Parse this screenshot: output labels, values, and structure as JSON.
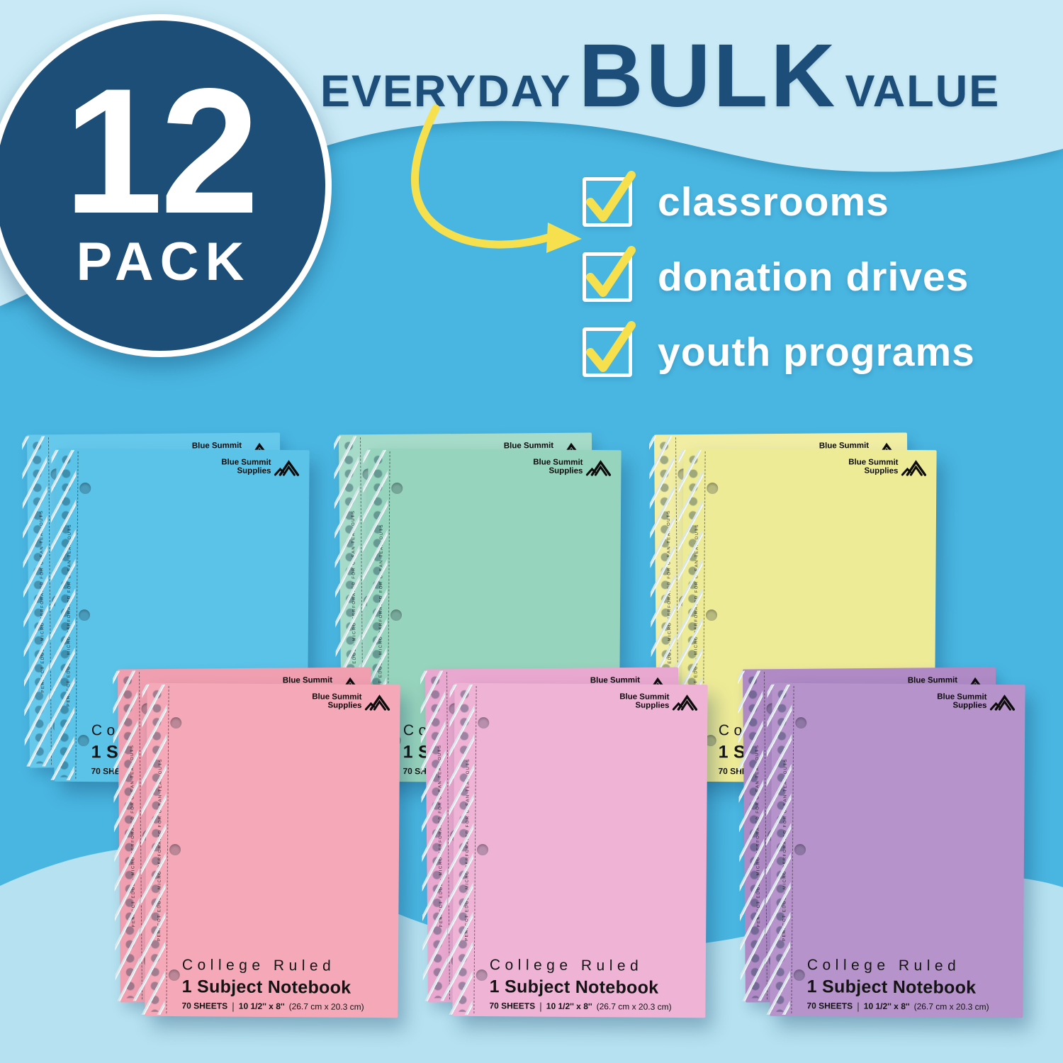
{
  "badge": {
    "count": "12",
    "label": "PACK"
  },
  "headline": {
    "word1": "EVERYDAY",
    "word2": "BULK",
    "word3": "VALUE"
  },
  "checklist": {
    "items": [
      "classrooms",
      "donation drives",
      "youth programs"
    ]
  },
  "notebook": {
    "brand": {
      "line1": "Blue Summit",
      "line2": "Supplies"
    },
    "edge_text": "PERFECT EDGE - MICRO PERFORATED FOR CLEAN TEAR-OUTS",
    "ruling": "College Ruled",
    "subject": "1 Subject Notebook",
    "sheets": "70 SHEETS",
    "sheets_divider": "|",
    "dimensions_in": "10 1/2'' x 8''",
    "dimensions_cm": "(26.7 cm x 20.3 cm)",
    "pairs": [
      {
        "color_name": "blue",
        "front": "#5bc3e8",
        "back": "#66c9ec"
      },
      {
        "color_name": "mint-green",
        "front": "#97d4bd",
        "back": "#a5dbc8"
      },
      {
        "color_name": "pastel-yellow",
        "front": "#eeeb97",
        "back": "#f1eea4"
      },
      {
        "color_name": "pink",
        "front": "#f5a9b8",
        "back": "#f09fb0"
      },
      {
        "color_name": "orchid-pink",
        "front": "#efb3d6",
        "back": "#e9a8cf"
      },
      {
        "color_name": "purple",
        "front": "#b793cb",
        "back": "#af8ac5"
      }
    ]
  },
  "palette": {
    "background_mid": "#49b6e1",
    "background_light_top": "#c8e9f5",
    "background_light_bottom": "#b5e1f0",
    "badge_navy": "#1d4e78",
    "headline_navy": "#1d4d79",
    "accent_yellow": "#f6e04e",
    "check_text": "#ffffff"
  }
}
